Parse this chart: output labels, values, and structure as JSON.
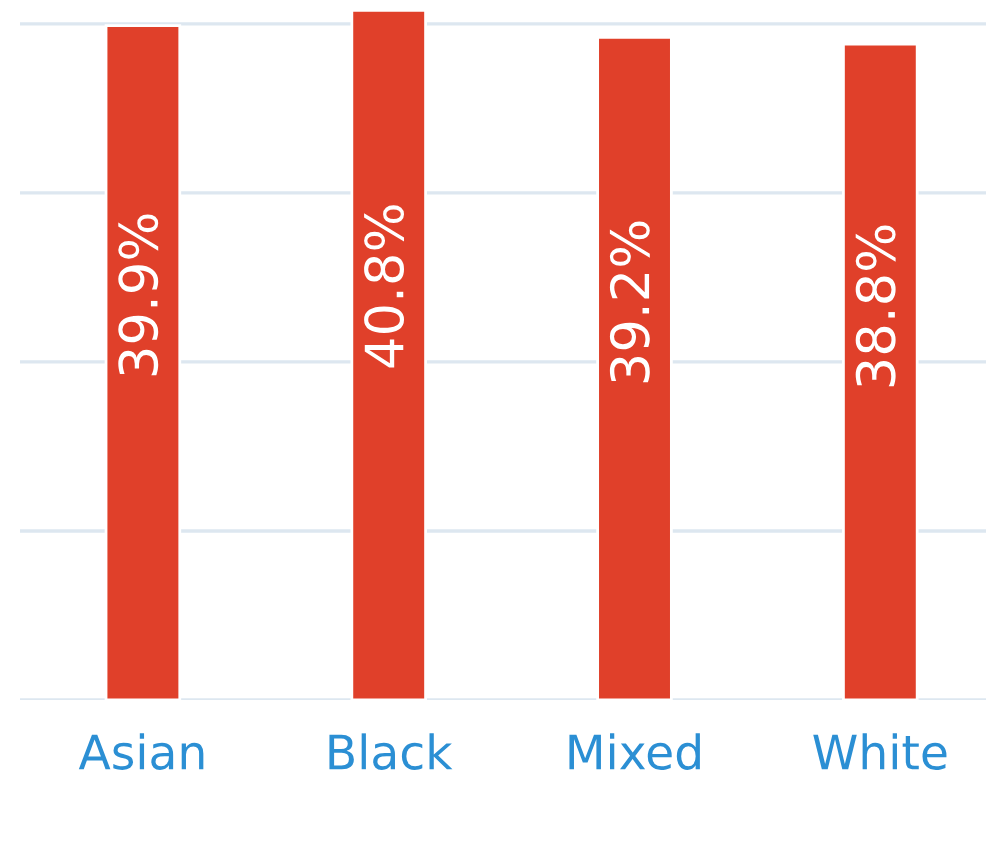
{
  "chart_data": {
    "type": "bar",
    "categories": [
      "Asian",
      "Black",
      "Mixed",
      "White"
    ],
    "values": [
      39.9,
      40.8,
      39.2,
      38.8
    ],
    "value_labels": [
      "39.9%",
      "40.8%",
      "39.2%",
      "38.8%"
    ],
    "color": "#e0402a",
    "yticks": [
      {
        "value": 0,
        "label": null
      },
      {
        "value": 10,
        "label": null
      },
      {
        "value": 20,
        "label": null
      },
      {
        "value": 30,
        "label": null
      },
      {
        "value": 40,
        "label": null
      }
    ],
    "grid": "y",
    "tick_labels": "x"
  }
}
